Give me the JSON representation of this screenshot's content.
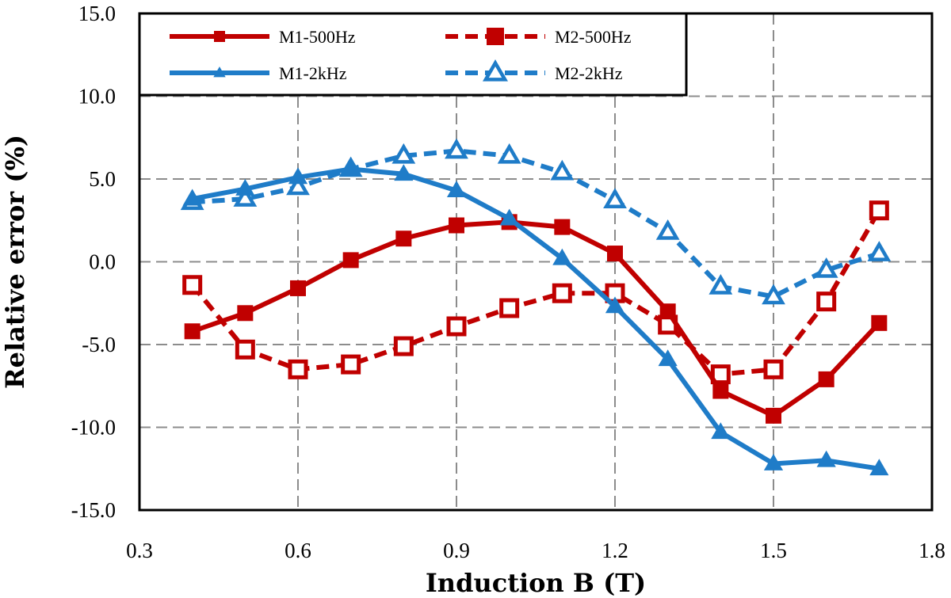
{
  "chart_data": {
    "type": "line",
    "title": "",
    "xlabel": "Induction B (T)",
    "ylabel": "Relative error (%)",
    "xlim": [
      0.3,
      1.8
    ],
    "ylim": [
      -15,
      15
    ],
    "x_ticks": [
      "0.3",
      "0.6",
      "0.9",
      "1.2",
      "1.5",
      "1.8"
    ],
    "y_ticks": [
      "15.0",
      "10.0",
      "5.0",
      "0.0",
      "-5.0",
      "-10.0",
      "-15.0"
    ],
    "grid": true,
    "legend_position": "top-left",
    "x": [
      0.4,
      0.5,
      0.6,
      0.7,
      0.8,
      0.9,
      1.0,
      1.1,
      1.2,
      1.3,
      1.4,
      1.5,
      1.6,
      1.7
    ],
    "series": [
      {
        "name": "M1-500Hz",
        "color": "#c00000",
        "line_style": "solid",
        "marker": "square-filled",
        "values": [
          -4.2,
          -3.1,
          -1.6,
          0.1,
          1.4,
          2.2,
          2.4,
          2.1,
          0.5,
          -3.0,
          -7.8,
          -9.3,
          -7.1,
          -3.7
        ]
      },
      {
        "name": "M2-500Hz",
        "color": "#c00000",
        "line_style": "dashed",
        "marker": "square-open",
        "values": [
          -1.4,
          -5.3,
          -6.5,
          -6.2,
          -5.1,
          -3.9,
          -2.8,
          -1.9,
          -1.9,
          -3.8,
          -6.8,
          -6.5,
          -2.4,
          3.1
        ]
      },
      {
        "name": "M1-2kHz",
        "color": "#1f7cc8",
        "line_style": "solid",
        "marker": "triangle-filled",
        "values": [
          3.8,
          4.4,
          5.1,
          5.6,
          5.3,
          4.3,
          2.6,
          0.2,
          -2.7,
          -5.9,
          -10.3,
          -12.2,
          -12.0,
          -12.5
        ]
      },
      {
        "name": "M2-2kHz",
        "color": "#1f7cc8",
        "line_style": "dashed",
        "marker": "triangle-open",
        "values": [
          3.6,
          3.8,
          4.5,
          5.6,
          6.4,
          6.7,
          6.4,
          5.4,
          3.7,
          1.8,
          -1.5,
          -2.1,
          -0.5,
          0.5
        ]
      }
    ]
  }
}
